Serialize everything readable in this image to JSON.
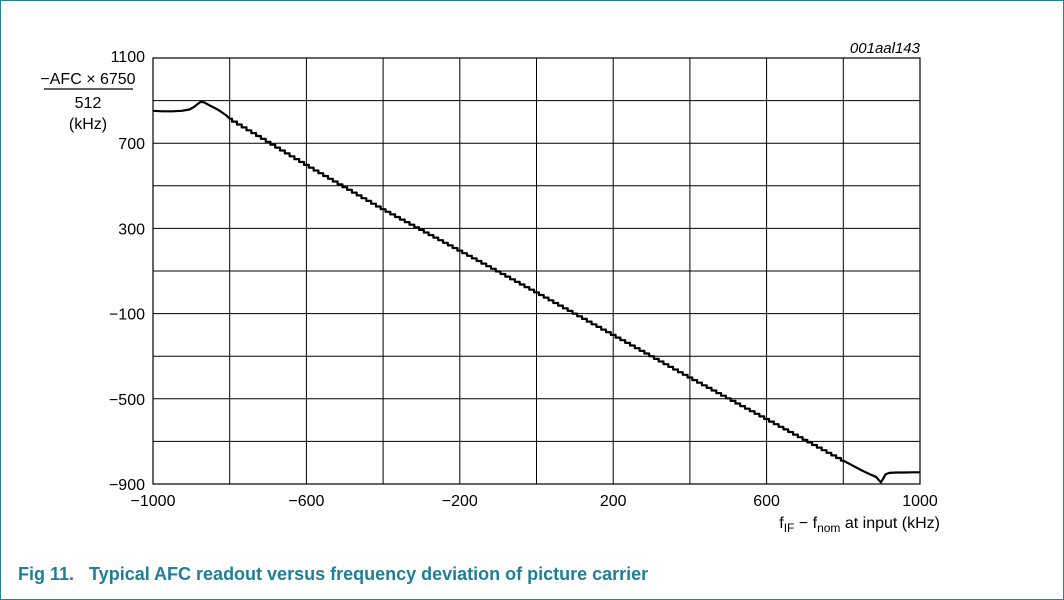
{
  "figure": {
    "id_label": "001aal143",
    "caption": "Fig 11.   Typical AFC readout versus frequency deviation of picture carrier",
    "caption_color": "#1f7f95",
    "frame_color": "#2a7f8a"
  },
  "chart_data": {
    "type": "line",
    "title": "",
    "ylabel": {
      "numerator": "−AFC × 6750",
      "denominator": "512",
      "unit": "(kHz)"
    },
    "xlabel": {
      "main": "f",
      "sub1": "IF",
      "mid": " − f",
      "sub2": "nom",
      "tail": " at input (kHz)"
    },
    "xlim": [
      -1000,
      1000
    ],
    "ylim": [
      -900,
      1100
    ],
    "x_ticks": [
      -1000,
      -600,
      -200,
      200,
      600,
      1000
    ],
    "x_tick_labels": [
      "−1000",
      "−600",
      "−200",
      "200",
      "600",
      "1000"
    ],
    "y_ticks": [
      -900,
      -500,
      -100,
      300,
      700,
      1100
    ],
    "y_tick_labels": [
      "−900",
      "−500",
      "−100",
      "300",
      "700",
      "1100"
    ],
    "grid": true,
    "grid_x_step": 200,
    "grid_y_step": 200,
    "series": [
      {
        "x": [
          -1000,
          -980,
          -960,
          -940,
          -920,
          -900,
          -890,
          -880,
          -870,
          -860,
          -840,
          -820,
          -800,
          -1000
        ],
        "y": [
          850,
          848,
          848,
          848,
          850,
          856,
          866,
          875,
          888,
          882,
          860,
          838,
          815,
          850
        ],
        "note": ""
      }
    ],
    "line_points": [
      [
        -1000,
        852
      ],
      [
        -975,
        850
      ],
      [
        -950,
        850
      ],
      [
        -925,
        852
      ],
      [
        -905,
        858
      ],
      [
        -893,
        870
      ],
      [
        -883,
        885
      ],
      [
        -875,
        895
      ],
      [
        -865,
        890
      ],
      [
        -850,
        875
      ],
      [
        -830,
        857
      ],
      [
        -810,
        832
      ],
      [
        -800,
        815
      ],
      [
        -600,
        598
      ],
      [
        -400,
        390
      ],
      [
        -200,
        196
      ],
      [
        0,
        0
      ],
      [
        200,
        -200
      ],
      [
        400,
        -400
      ],
      [
        600,
        -595
      ],
      [
        800,
        -790
      ],
      [
        850,
        -838
      ],
      [
        870,
        -855
      ],
      [
        885,
        -866
      ],
      [
        893,
        -882
      ],
      [
        898,
        -892
      ],
      [
        903,
        -878
      ],
      [
        910,
        -855
      ],
      [
        920,
        -848
      ],
      [
        940,
        -846
      ],
      [
        960,
        -846
      ],
      [
        980,
        -845
      ],
      [
        1000,
        -845
      ]
    ]
  }
}
